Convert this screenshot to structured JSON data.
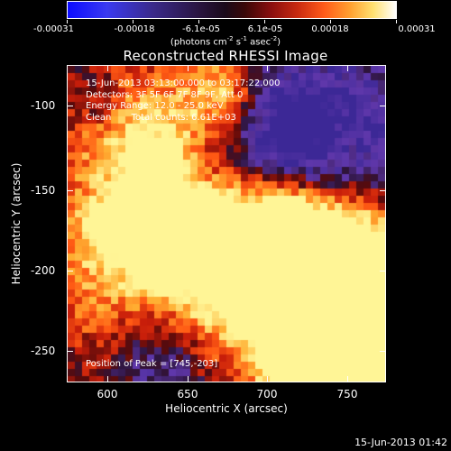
{
  "colorbar": {
    "labels": [
      "-0.00031",
      "-0.00018",
      "-6.1e-05",
      "6.1e-05",
      "0.00018",
      "0.00031"
    ],
    "units_pre": "(photons cm",
    "units_exp1": "-2",
    "units_mid1": " s",
    "units_exp2": "-1",
    "units_mid2": " asec",
    "units_exp3": "-2",
    "units_post": ")"
  },
  "title": "Reconstructed RHESSI Image",
  "annotation": {
    "time": "15-Jun-2013 03:13:00.000 to 03:17:22.000",
    "detectors": "Detectors: 3F 5F 6F 7F 8F 9F, Att 0",
    "energy": "Energy Range: 12.0 - 25.0 keV",
    "clean": "Clean       Total counts: 6.61E+03"
  },
  "peak": "Position of Peak = [745,-203]",
  "axes": {
    "x_title": "Heliocentric X (arcsec)",
    "y_title": "Heliocentric Y (arcsec)",
    "x_ticks": [
      "600",
      "650",
      "700",
      "750"
    ],
    "y_ticks": [
      "-100",
      "-150",
      "-200",
      "-250"
    ]
  },
  "timestamp": "15-Jun-2013 01:42",
  "colors": {
    "low": "#0b0bff",
    "mid_low": "#3a2a8a",
    "zero": "#1a0a1a",
    "mid_high": "#c82a10",
    "high": "#ffe070",
    "max": "#ffffff"
  }
}
